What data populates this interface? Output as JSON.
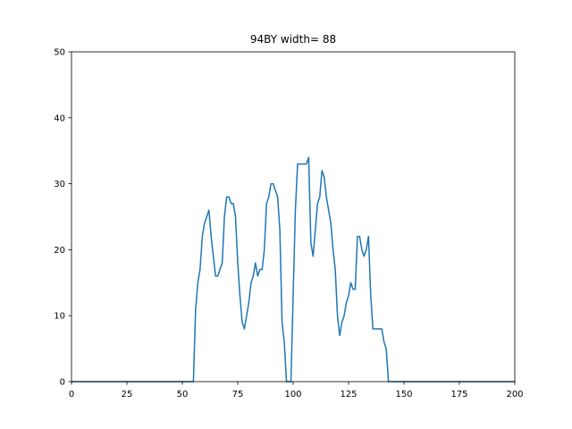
{
  "chart_data": {
    "type": "line",
    "title": "94BY width= 88",
    "xlabel": "",
    "ylabel": "",
    "xlim": [
      0,
      200
    ],
    "ylim": [
      0,
      50
    ],
    "xticks": [
      0,
      25,
      50,
      75,
      100,
      125,
      150,
      175,
      200
    ],
    "yticks": [
      0,
      10,
      20,
      30,
      40,
      50
    ],
    "grid": false,
    "legend": "none",
    "series": [
      {
        "color": "#1f77b4",
        "x": [
          0,
          55,
          56,
          57,
          58,
          59,
          60,
          61,
          62,
          63,
          64,
          65,
          66,
          67,
          68,
          69,
          70,
          71,
          72,
          73,
          74,
          75,
          76,
          77,
          78,
          79,
          80,
          81,
          82,
          83,
          84,
          85,
          86,
          87,
          88,
          89,
          90,
          91,
          92,
          93,
          94,
          95,
          96,
          97,
          98,
          99,
          100,
          101,
          102,
          103,
          104,
          105,
          106,
          107,
          108,
          109,
          110,
          111,
          112,
          113,
          114,
          115,
          116,
          117,
          118,
          119,
          120,
          121,
          122,
          123,
          124,
          125,
          126,
          127,
          128,
          129,
          130,
          131,
          132,
          133,
          134,
          135,
          136,
          137,
          138,
          139,
          140,
          141,
          142,
          143,
          200
        ],
        "y": [
          0,
          0,
          11,
          15,
          17,
          22,
          24,
          25,
          26,
          22,
          19,
          16,
          16,
          17,
          18,
          25,
          28,
          28,
          27,
          27,
          25,
          18,
          13,
          9,
          8,
          10,
          12,
          15,
          16,
          18,
          16,
          17,
          17,
          20,
          27,
          28,
          30,
          30,
          29,
          28,
          23,
          9,
          6,
          0,
          0,
          0,
          13,
          26,
          33,
          33,
          33,
          33,
          33,
          34,
          21,
          19,
          23,
          27,
          28,
          32,
          31,
          28,
          26,
          24,
          20,
          17,
          10,
          7,
          9,
          10,
          12,
          13,
          15,
          14,
          14,
          22,
          22,
          20,
          19,
          20,
          22,
          13,
          8,
          8,
          8,
          8,
          8,
          6,
          5,
          0,
          0
        ]
      }
    ]
  }
}
